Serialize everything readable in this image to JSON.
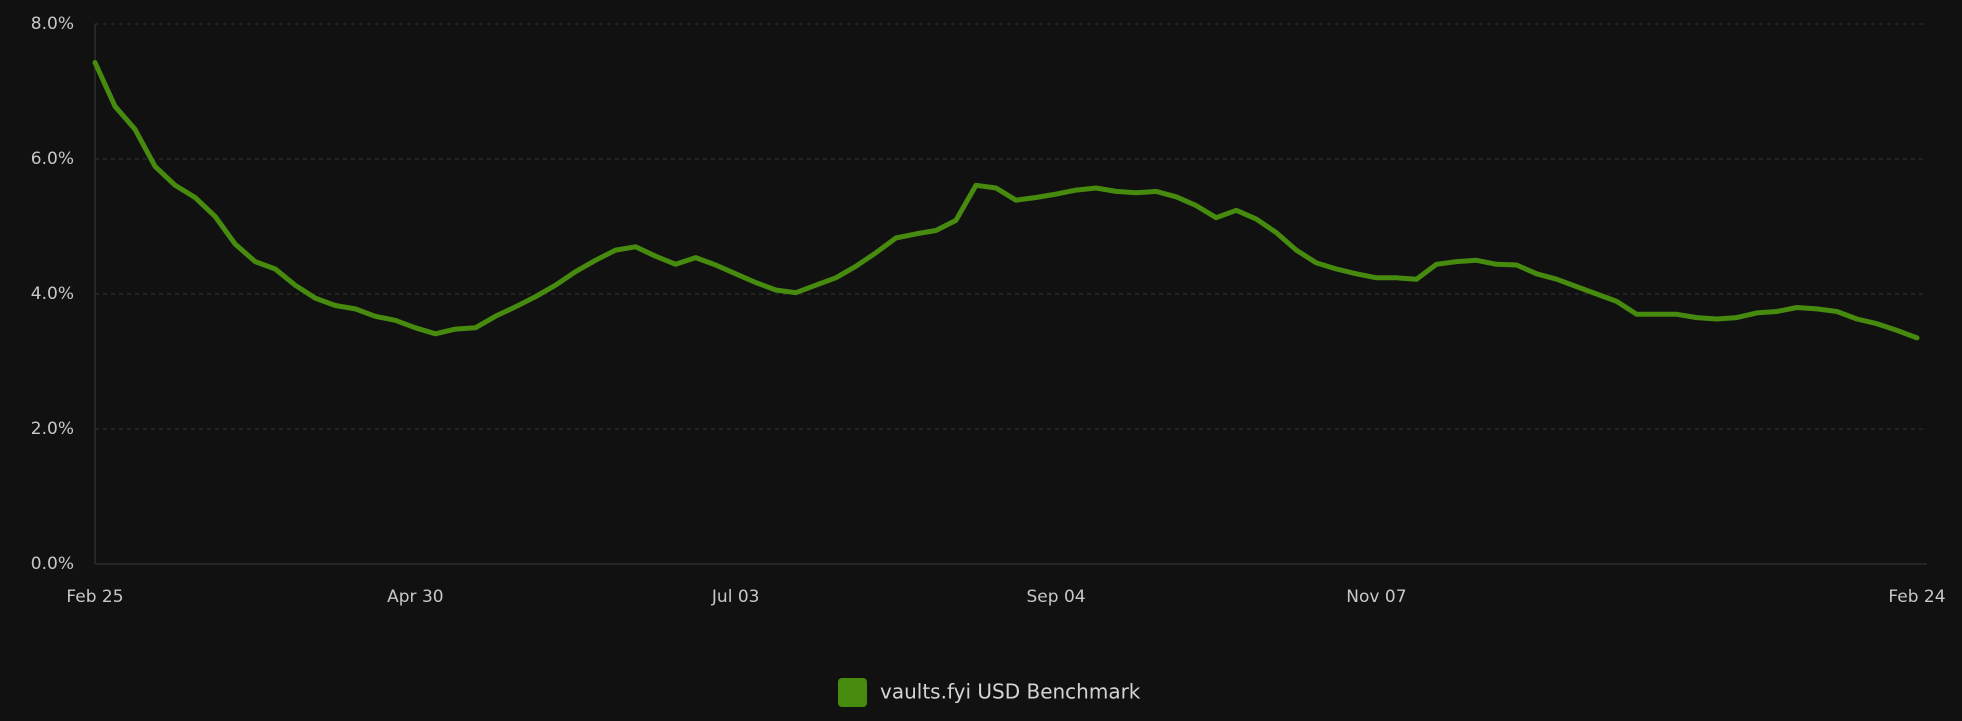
{
  "chart_data": {
    "type": "line",
    "categories": [
      "Feb 25",
      null,
      null,
      null,
      null,
      null,
      null,
      null,
      null,
      null,
      null,
      null,
      null,
      null,
      null,
      null,
      "Apr 30",
      null,
      null,
      null,
      null,
      null,
      null,
      null,
      null,
      null,
      null,
      null,
      null,
      null,
      null,
      null,
      "Jul 03",
      null,
      null,
      null,
      null,
      null,
      null,
      null,
      null,
      null,
      null,
      null,
      null,
      null,
      null,
      null,
      "Sep 04",
      null,
      null,
      null,
      null,
      null,
      null,
      null,
      null,
      null,
      null,
      null,
      null,
      null,
      null,
      null,
      "Nov 07",
      null,
      null,
      null,
      null,
      null,
      null,
      null,
      null,
      null,
      null,
      null,
      null,
      null,
      null,
      null,
      null,
      null,
      null,
      null,
      null,
      null,
      null,
      null,
      null,
      null,
      null,
      "Feb 24"
    ],
    "series": [
      {
        "name": "vaults.fyi USD Benchmark",
        "color": "#468a0e",
        "values": [
          7.43,
          6.78,
          6.44,
          5.89,
          5.61,
          5.43,
          5.15,
          4.74,
          4.48,
          4.37,
          4.13,
          3.94,
          3.83,
          3.78,
          3.67,
          3.61,
          3.5,
          3.41,
          3.48,
          3.5,
          3.67,
          3.81,
          3.96,
          4.13,
          4.33,
          4.5,
          4.65,
          4.7,
          4.56,
          4.44,
          4.54,
          4.43,
          4.3,
          4.17,
          4.06,
          4.02,
          4.13,
          4.24,
          4.41,
          4.61,
          4.83,
          4.89,
          4.94,
          5.09,
          5.61,
          5.57,
          5.39,
          5.43,
          5.48,
          5.54,
          5.57,
          5.52,
          5.5,
          5.52,
          5.44,
          5.31,
          5.13,
          5.24,
          5.11,
          4.91,
          4.65,
          4.46,
          4.37,
          4.3,
          4.24,
          4.24,
          4.22,
          4.44,
          4.48,
          4.5,
          4.44,
          4.43,
          4.3,
          4.22,
          4.11,
          4.0,
          3.89,
          3.7,
          3.7,
          3.7,
          3.65,
          3.63,
          3.65,
          3.72,
          3.74,
          3.8,
          3.78,
          3.74,
          3.63,
          3.56,
          3.46,
          3.35
        ]
      }
    ],
    "ylim": [
      0,
      8
    ],
    "yticks": [
      {
        "value": 0,
        "label": "0.0%"
      },
      {
        "value": 2,
        "label": "2.0%"
      },
      {
        "value": 4,
        "label": "4.0%"
      },
      {
        "value": 6,
        "label": "6.0%"
      },
      {
        "value": 8,
        "label": "8.0%"
      }
    ],
    "grid": true
  }
}
